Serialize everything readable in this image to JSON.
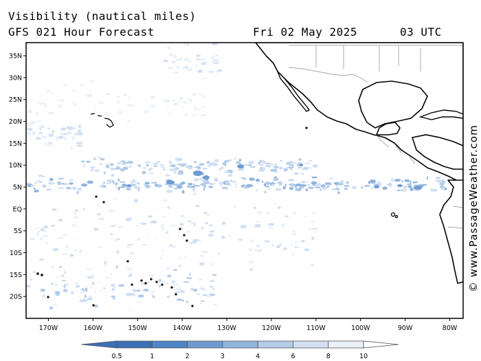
{
  "header": {
    "title": "Visibility (nautical miles)",
    "subtitle": "GFS 021 Hour Forecast",
    "date": "Fri 02 May 2025",
    "time": "03 UTC"
  },
  "credit": "© www.PassageWeather.com",
  "map": {
    "lat_range": [
      -25,
      38
    ],
    "lon_range": [
      -175,
      -77
    ],
    "lat_ticks": [
      {
        "value": 35,
        "label": "35N"
      },
      {
        "value": 30,
        "label": "30N"
      },
      {
        "value": 25,
        "label": "25N"
      },
      {
        "value": 20,
        "label": "20N"
      },
      {
        "value": 15,
        "label": "15N"
      },
      {
        "value": 10,
        "label": "10N"
      },
      {
        "value": 5,
        "label": "5N"
      },
      {
        "value": 0,
        "label": "EQ"
      },
      {
        "value": -5,
        "label": "5S"
      },
      {
        "value": -10,
        "label": "10S"
      },
      {
        "value": -15,
        "label": "15S"
      },
      {
        "value": -20,
        "label": "20S"
      }
    ],
    "lon_ticks": [
      {
        "value": -170,
        "label": "170W"
      },
      {
        "value": -160,
        "label": "160W"
      },
      {
        "value": -150,
        "label": "150W"
      },
      {
        "value": -140,
        "label": "140W"
      },
      {
        "value": -130,
        "label": "130W"
      },
      {
        "value": -120,
        "label": "120W"
      },
      {
        "value": -110,
        "label": "110W"
      },
      {
        "value": -100,
        "label": "100W"
      },
      {
        "value": -90,
        "label": "90W"
      },
      {
        "value": -80,
        "label": "80W"
      }
    ]
  },
  "legend": {
    "labels": [
      "0.5",
      "1",
      "2",
      "3",
      "4",
      "6",
      "8",
      "10"
    ],
    "colors": [
      "#3b6fb6",
      "#4f84c6",
      "#6f9bd2",
      "#91b4dd",
      "#b2cbe8",
      "#d2e0f2",
      "#ebf1fa",
      "#ffffff"
    ]
  }
}
